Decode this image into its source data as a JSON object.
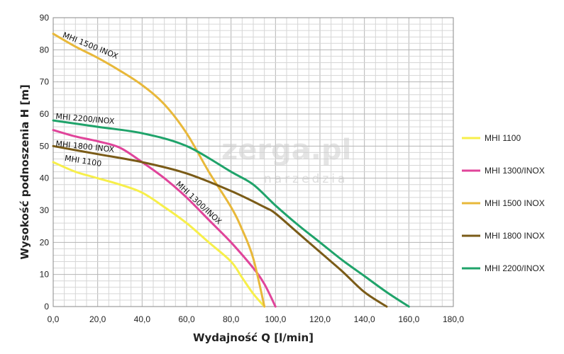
{
  "watermark": {
    "brand": "zerga.pl",
    "tagline": "narzedzia"
  },
  "chart_data": {
    "type": "line",
    "xlabel": "Wydajność Q [l/min]",
    "ylabel": "Wysokość podnoszenia H [m]",
    "xlim": [
      0,
      180
    ],
    "ylim": [
      0,
      90
    ],
    "x_ticks": [
      "0,0",
      "20,0",
      "40,0",
      "60,0",
      "80,0",
      "100,0",
      "120,0",
      "140,0",
      "160,0",
      "180,0"
    ],
    "y_ticks": [
      "0",
      "10",
      "20",
      "30",
      "40",
      "50",
      "60",
      "70",
      "80",
      "90"
    ],
    "grid": true,
    "legend_position": "right",
    "series": [
      {
        "name": "MHI 1100",
        "curve_label": "MHI 1100",
        "color": "#f7ef4a",
        "points": [
          [
            0,
            45
          ],
          [
            10,
            42
          ],
          [
            20,
            40
          ],
          [
            30,
            38
          ],
          [
            40,
            35.5
          ],
          [
            50,
            31
          ],
          [
            60,
            26
          ],
          [
            70,
            20
          ],
          [
            80,
            14
          ],
          [
            85,
            9
          ],
          [
            90,
            4
          ],
          [
            95,
            0
          ]
        ]
      },
      {
        "name": "MHI 1300/INOX",
        "curve_label": "MHI 1300/INOX",
        "color": "#e0449a",
        "points": [
          [
            0,
            55
          ],
          [
            10,
            53
          ],
          [
            20,
            51.5
          ],
          [
            30,
            49.5
          ],
          [
            40,
            45
          ],
          [
            50,
            40
          ],
          [
            60,
            34
          ],
          [
            70,
            27
          ],
          [
            80,
            20
          ],
          [
            90,
            12
          ],
          [
            95,
            7
          ],
          [
            100,
            0
          ]
        ]
      },
      {
        "name": "MHI 1500 INOX",
        "curve_label": "MHI 1500 INOX",
        "color": "#e8b83a",
        "points": [
          [
            0,
            85
          ],
          [
            10,
            81
          ],
          [
            20,
            77.5
          ],
          [
            30,
            73.5
          ],
          [
            40,
            69
          ],
          [
            50,
            63
          ],
          [
            60,
            54
          ],
          [
            70,
            42
          ],
          [
            80,
            31
          ],
          [
            85,
            24
          ],
          [
            90,
            15
          ],
          [
            95,
            0
          ]
        ]
      },
      {
        "name": "MHI 1800 INOX",
        "curve_label": "MHI 1800 INOX",
        "color": "#7a5b17",
        "points": [
          [
            0,
            50
          ],
          [
            20,
            47.5
          ],
          [
            40,
            45
          ],
          [
            60,
            41.5
          ],
          [
            80,
            36
          ],
          [
            95,
            31
          ],
          [
            100,
            29
          ],
          [
            110,
            23
          ],
          [
            120,
            17
          ],
          [
            130,
            11
          ],
          [
            140,
            4.5
          ],
          [
            150,
            0
          ]
        ]
      },
      {
        "name": "MHI 2200/INOX",
        "curve_label": "MHI 2200/INOX",
        "color": "#1fa36a",
        "points": [
          [
            0,
            58
          ],
          [
            20,
            56
          ],
          [
            40,
            54
          ],
          [
            60,
            50
          ],
          [
            80,
            42
          ],
          [
            90,
            38
          ],
          [
            100,
            31.5
          ],
          [
            110,
            25.5
          ],
          [
            120,
            20
          ],
          [
            130,
            14.5
          ],
          [
            140,
            9.5
          ],
          [
            150,
            4.5
          ],
          [
            160,
            0
          ]
        ]
      }
    ]
  }
}
